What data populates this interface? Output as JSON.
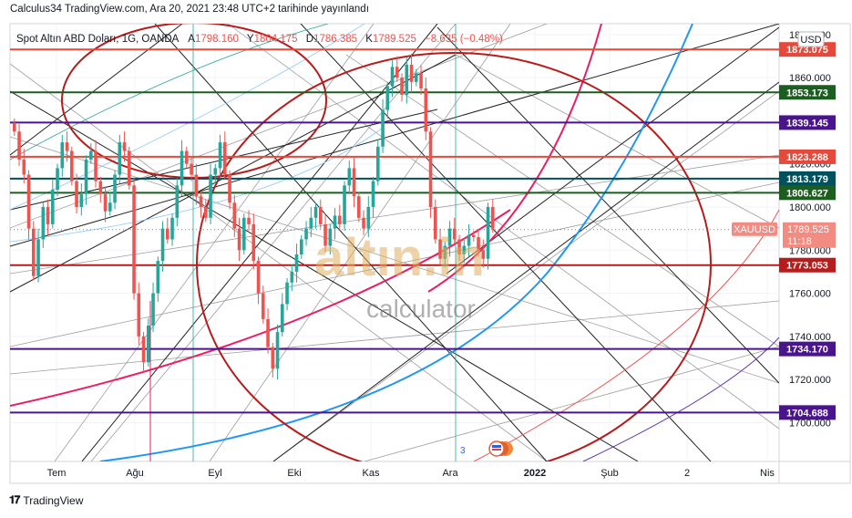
{
  "publish_line": "Calculus34 TradingView.com, Ara 20, 2021 23:48 UTC+2 tarihinde yayınlandı",
  "legend": {
    "symbol": "Spot Altın ABD Doları, 1G, OANDA",
    "open_label": "A",
    "open": "1798.160",
    "high_label": "Y",
    "high": "1804.175",
    "low_label": "D",
    "low": "1786.385",
    "close_label": "K",
    "close": "1789.525",
    "change": "−8.635 (−0.48%)"
  },
  "currency_badge": "USD",
  "footer_brand": "TradingView",
  "watermark": {
    "brand": "altın.in",
    "sub": "calculator"
  },
  "event_marker": "3",
  "colors": {
    "up": "#26a69a",
    "down": "#ef5350",
    "grid": "#f0f3fa",
    "red_level": "#e34a3b",
    "dark_red_level": "#b71c1c",
    "green_level": "#1b5e20",
    "teal_level": "#00515e",
    "purple_level": "#4a148c",
    "price_tag": "#f28b82"
  },
  "chart_data": {
    "type": "candlestick",
    "y_axis": {
      "min": 1682,
      "max": 1885,
      "side": "right",
      "ticks": [
        1700,
        1720,
        1740,
        1760,
        1780,
        1800,
        1820,
        1840,
        1860,
        1880
      ],
      "tick_labels": [
        "1700.000",
        "1720.000",
        "1740.000",
        "1760.000",
        "1780.000",
        "1800.000",
        "1820.000",
        "1840.000",
        "1860.000",
        "1880.000"
      ]
    },
    "x_axis": {
      "labels": [
        "Tem",
        "Ağu",
        "Eyl",
        "Eki",
        "Kas",
        "Ara",
        "2022",
        "Şub",
        "2",
        "Nis"
      ],
      "label_bold": [
        false,
        false,
        false,
        false,
        false,
        false,
        true,
        false,
        false,
        false
      ]
    },
    "horizontal_levels": [
      {
        "value": 1873.075,
        "label": "1873.075",
        "color": "#e34a3b"
      },
      {
        "value": 1853.173,
        "label": "1853.173",
        "color": "#1b5e20"
      },
      {
        "value": 1839.145,
        "label": "1839.145",
        "color": "#4a148c"
      },
      {
        "value": 1823.288,
        "label": "1823.288",
        "color": "#e34a3b"
      },
      {
        "value": 1813.179,
        "label": "1813.179",
        "color": "#00515e"
      },
      {
        "value": 1806.627,
        "label": "1806.627",
        "color": "#1b5e20"
      },
      {
        "value": 1773.053,
        "label": "1773.053",
        "color": "#b71c1c"
      },
      {
        "value": 1734.17,
        "label": "1734.170",
        "color": "#4a148c"
      },
      {
        "value": 1704.688,
        "label": "1704.688",
        "color": "#4a148c"
      }
    ],
    "last_price": {
      "symbol": "XAUUSD",
      "value": 1789.525,
      "label": "1789.525",
      "countdown": "11:18"
    },
    "closes": [
      1835,
      1822,
      1815,
      1790,
      1768,
      1785,
      1800,
      1792,
      1808,
      1818,
      1830,
      1826,
      1812,
      1800,
      1806,
      1822,
      1826,
      1812,
      1806,
      1798,
      1802,
      1815,
      1830,
      1826,
      1810,
      1760,
      1740,
      1728,
      1745,
      1760,
      1775,
      1790,
      1785,
      1795,
      1810,
      1826,
      1820,
      1815,
      1805,
      1800,
      1795,
      1815,
      1818,
      1830,
      1815,
      1802,
      1790,
      1780,
      1795,
      1792,
      1775,
      1760,
      1748,
      1735,
      1725,
      1742,
      1755,
      1765,
      1770,
      1778,
      1785,
      1790,
      1795,
      1800,
      1792,
      1782,
      1790,
      1796,
      1792,
      1810,
      1818,
      1805,
      1795,
      1790,
      1800,
      1812,
      1828,
      1845,
      1856,
      1865,
      1860,
      1852,
      1866,
      1858,
      1862,
      1855,
      1835,
      1800,
      1785,
      1776,
      1782,
      1790,
      1785,
      1778,
      1782,
      1787,
      1786,
      1780,
      1776,
      1800,
      1790
    ]
  }
}
